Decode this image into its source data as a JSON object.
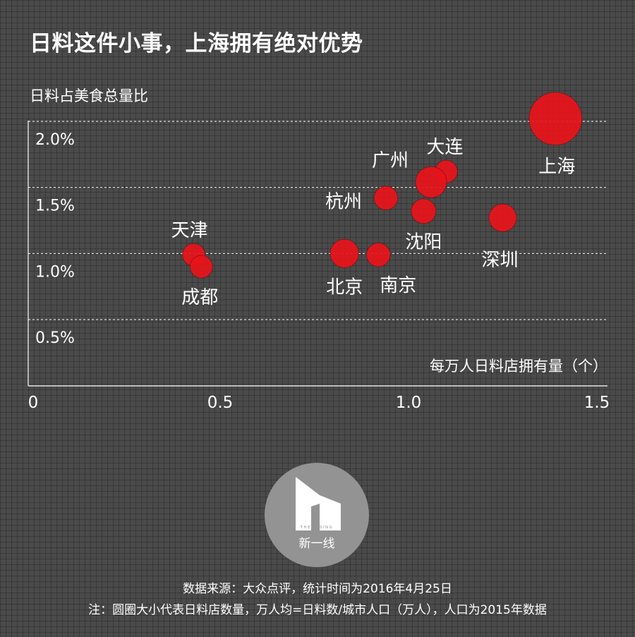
{
  "title": "日料这件小事，上海拥有绝对优势",
  "chart_data": {
    "type": "scatter",
    "title": "日料这件小事，上海拥有绝对优势",
    "ylabel": "日料占美食总量比",
    "xlabel": "每万人日料店拥有量（个）",
    "xlim": [
      0,
      1.5
    ],
    "ylim": [
      0.25,
      2.25
    ],
    "x_ticks": [
      "0",
      "0.5",
      "1.0",
      "1.5"
    ],
    "x_tick_values": [
      0,
      0.5,
      1.0,
      1.5
    ],
    "y_ticks": [
      "0.5%",
      "1.0%",
      "1.5%",
      "2.0%"
    ],
    "y_tick_values": [
      0.5,
      1.0,
      1.5,
      2.0
    ],
    "grid": "horizontal dashed",
    "marker_color": "#e8141a",
    "points": [
      {
        "label": "上海",
        "x": 1.39,
        "y": 2.02,
        "size": 3.0
      },
      {
        "label": "大连",
        "x": 1.1,
        "y": 1.62,
        "size": 1.0
      },
      {
        "label": "广州",
        "x": 1.06,
        "y": 1.54,
        "size": 1.9
      },
      {
        "label": "杭州",
        "x": 0.94,
        "y": 1.42,
        "size": 1.1
      },
      {
        "label": "沈阳",
        "x": 1.04,
        "y": 1.32,
        "size": 1.2
      },
      {
        "label": "深圳",
        "x": 1.25,
        "y": 1.27,
        "size": 1.5
      },
      {
        "label": "北京",
        "x": 0.83,
        "y": 1.0,
        "size": 1.6
      },
      {
        "label": "南京",
        "x": 0.92,
        "y": 0.99,
        "size": 1.1
      },
      {
        "label": "天津",
        "x": 0.43,
        "y": 0.99,
        "size": 1.0
      },
      {
        "label": "成都",
        "x": 0.45,
        "y": 0.9,
        "size": 1.0
      }
    ]
  },
  "logo": {
    "small_text": "THE RISING",
    "text": "新一线"
  },
  "footer": {
    "line1": "数据来源：大众点评，统计时间为2016年4月25日",
    "line2": "注：圆圈大小代表日料店数量，万人均=日料数/城市人口（万人），人口为2015年数据"
  }
}
